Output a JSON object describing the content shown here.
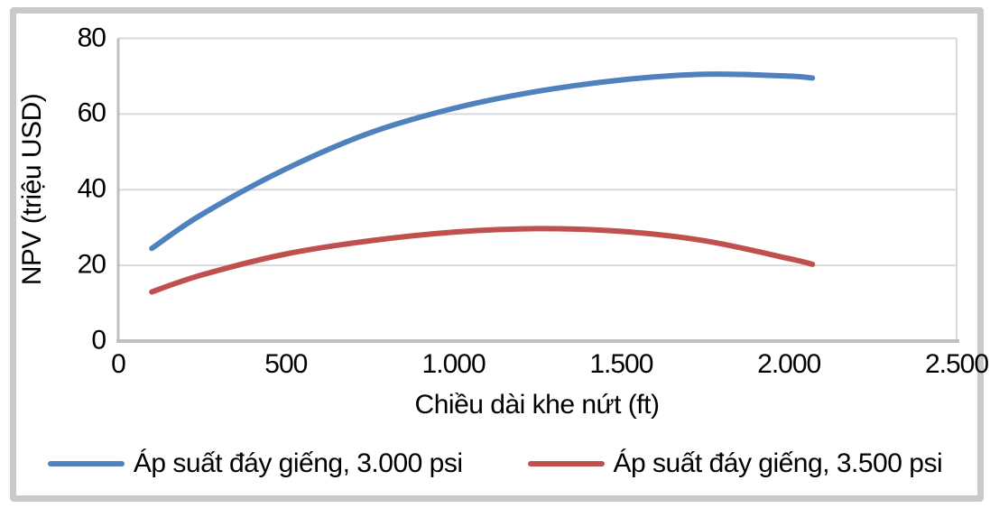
{
  "chart_data": {
    "type": "line",
    "title": "",
    "xlabel": "Chiều dài khe nứt (ft)",
    "ylabel": "NPV (triệu USD)",
    "xlim": [
      0,
      2500
    ],
    "ylim": [
      0,
      80
    ],
    "x_ticks": [
      "0",
      "500",
      "1.000",
      "1.500",
      "2.000",
      "2.500"
    ],
    "y_ticks": [
      "0",
      "20",
      "40",
      "60",
      "80"
    ],
    "grid": "horizontal gridlines on",
    "legend_position": "bottom",
    "colors": {
      "series1": "#4F81BD",
      "series2": "#C0504D",
      "gridline": "#d9d9d9",
      "axis_line": "#bfbfbf",
      "frame_border": "#c9c9c9"
    },
    "x": [
      100,
      250,
      500,
      750,
      1000,
      1250,
      1500,
      1750,
      2000,
      2070
    ],
    "series": [
      {
        "name": "Áp suất đáy giếng, 3.000 psi",
        "color": "#4F81BD",
        "values": [
          24.5,
          33.5,
          45.5,
          55,
          61.5,
          66,
          69,
          70.5,
          70,
          69.5
        ]
      },
      {
        "name": "Áp suất đáy giếng, 3.500 psi",
        "color": "#C0504D",
        "values": [
          13,
          17.5,
          23,
          26.5,
          28.8,
          29.7,
          29,
          26.5,
          21.8,
          20.3
        ]
      }
    ]
  }
}
